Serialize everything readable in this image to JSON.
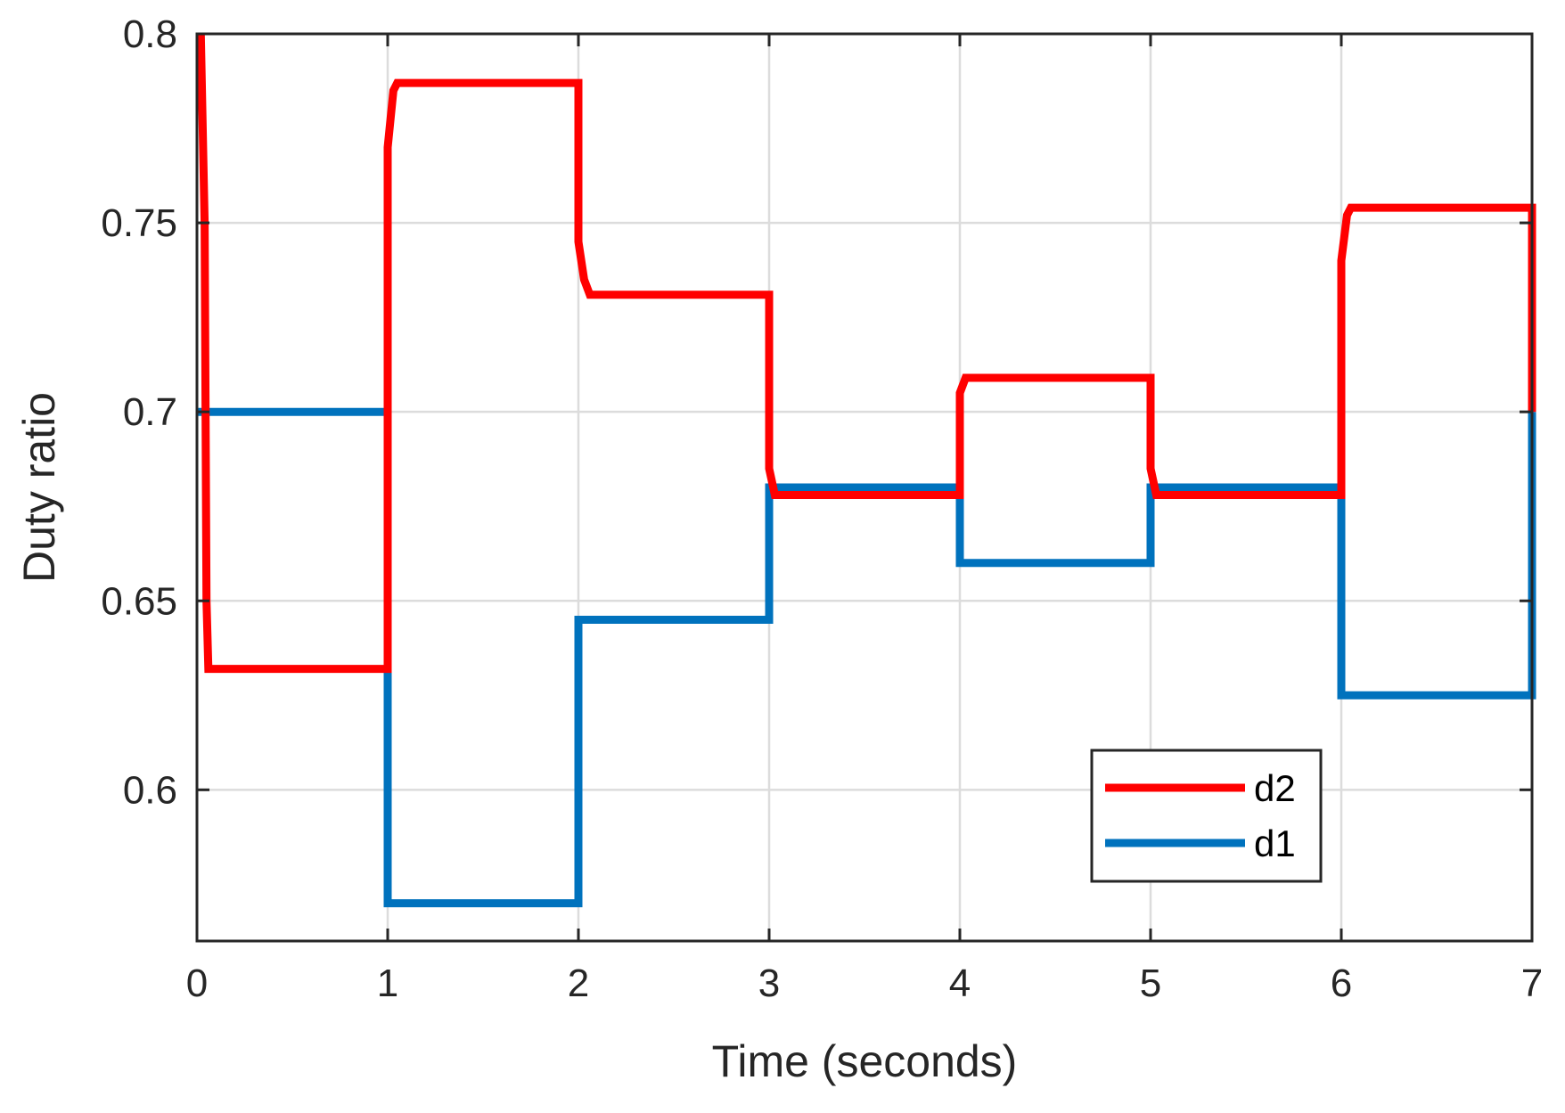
{
  "chart_data": {
    "type": "line",
    "title": "",
    "xlabel": "Time (seconds)",
    "ylabel": "Duty ratio",
    "xlim": [
      0,
      7
    ],
    "ylim": [
      0.56,
      0.8
    ],
    "xticks": [
      "0",
      "1",
      "2",
      "3",
      "4",
      "5",
      "6",
      "7"
    ],
    "yticks": [
      "0.6",
      "0.65",
      "0.7",
      "0.75",
      "0.8"
    ],
    "grid": true,
    "legend_position": "bottom-right",
    "series": [
      {
        "name": "d2",
        "color": "#ff0000",
        "points": [
          [
            0.02,
            0.8
          ],
          [
            0.04,
            0.75
          ],
          [
            0.05,
            0.65
          ],
          [
            0.06,
            0.632
          ],
          [
            1.0,
            0.632
          ],
          [
            1.0,
            0.77
          ],
          [
            1.03,
            0.785
          ],
          [
            1.05,
            0.787
          ],
          [
            2.0,
            0.787
          ],
          [
            2.0,
            0.745
          ],
          [
            2.03,
            0.735
          ],
          [
            2.06,
            0.731
          ],
          [
            3.0,
            0.731
          ],
          [
            3.0,
            0.685
          ],
          [
            3.03,
            0.678
          ],
          [
            4.0,
            0.678
          ],
          [
            4.0,
            0.705
          ],
          [
            4.03,
            0.709
          ],
          [
            5.0,
            0.709
          ],
          [
            5.0,
            0.685
          ],
          [
            5.03,
            0.678
          ],
          [
            6.0,
            0.678
          ],
          [
            6.0,
            0.74
          ],
          [
            6.03,
            0.752
          ],
          [
            6.05,
            0.754
          ],
          [
            7.0,
            0.754
          ],
          [
            7.0,
            0.7
          ]
        ]
      },
      {
        "name": "d1",
        "color": "#0072bd",
        "points": [
          [
            0.0,
            0.7
          ],
          [
            1.0,
            0.7
          ],
          [
            1.0,
            0.57
          ],
          [
            2.0,
            0.57
          ],
          [
            2.0,
            0.645
          ],
          [
            3.0,
            0.645
          ],
          [
            3.0,
            0.68
          ],
          [
            4.0,
            0.68
          ],
          [
            4.0,
            0.66
          ],
          [
            5.0,
            0.66
          ],
          [
            5.0,
            0.68
          ],
          [
            6.0,
            0.68
          ],
          [
            6.0,
            0.625
          ],
          [
            7.0,
            0.625
          ],
          [
            7.0,
            0.7
          ]
        ]
      }
    ],
    "legend": [
      "d2",
      "d1"
    ]
  }
}
